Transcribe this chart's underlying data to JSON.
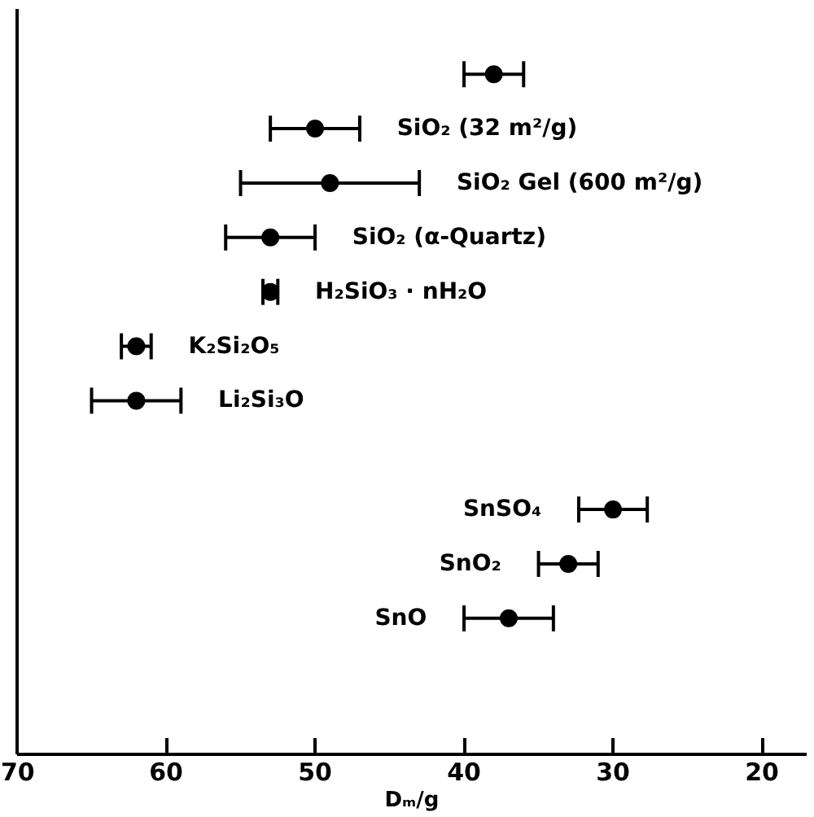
{
  "chart_data": {
    "type": "scatter",
    "orientation": "horizontal",
    "marker": "circle",
    "xlabel": "Dₘ/g",
    "xlim": [
      70,
      17
    ],
    "xticks": [
      70,
      60,
      50,
      40,
      30,
      20
    ],
    "tick_labels": "x",
    "grid": false,
    "categories": [
      null,
      "SiO₂ (32 m²/g)",
      "SiO₂ Gel (600 m²/g)",
      "SiO₂ (α-Quartz)",
      "H₂SiO₃ · nH₂O",
      "K₂Si₂O₅",
      "Li₂Si₃O",
      null,
      "SnSO₄",
      "SnO₂",
      "SnO",
      null,
      null
    ],
    "series": [
      {
        "color": "#000000",
        "values": [
          38,
          50,
          49,
          53,
          53,
          62,
          62,
          null,
          30,
          33,
          37,
          null,
          null
        ],
        "errors": [
          2,
          3,
          6,
          3,
          0.5,
          1,
          3,
          null,
          2.3,
          2,
          3,
          null,
          null
        ]
      }
    ]
  }
}
